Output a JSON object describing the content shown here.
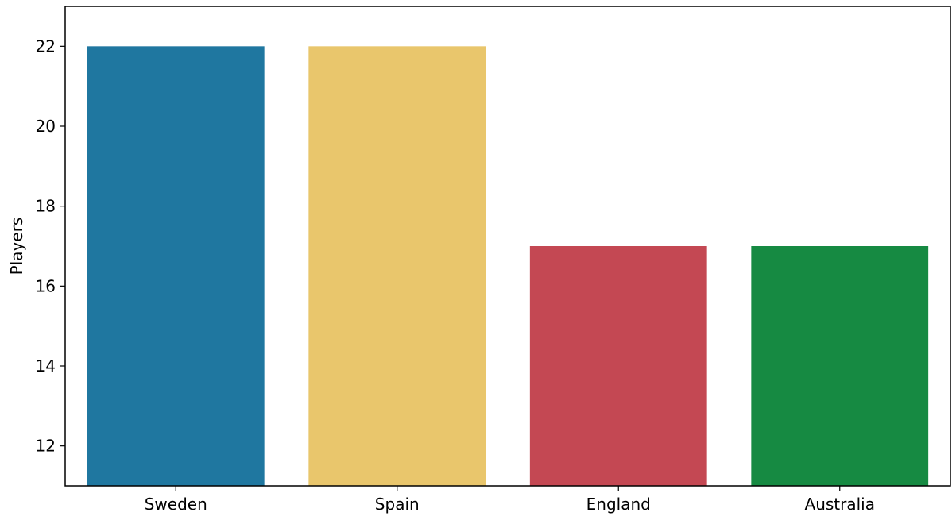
{
  "chart_data": {
    "type": "bar",
    "title": "",
    "xlabel": "",
    "ylabel": "Players",
    "categories": [
      "Sweden",
      "Spain",
      "England",
      "Australia"
    ],
    "values": [
      22,
      22,
      17,
      17
    ],
    "colors": [
      "#1f77a0",
      "#e9c66c",
      "#c44853",
      "#168a42"
    ],
    "ylim": [
      11,
      23
    ],
    "yticks": [
      12,
      14,
      16,
      18,
      20,
      22
    ],
    "grid": false,
    "legend": "none"
  }
}
